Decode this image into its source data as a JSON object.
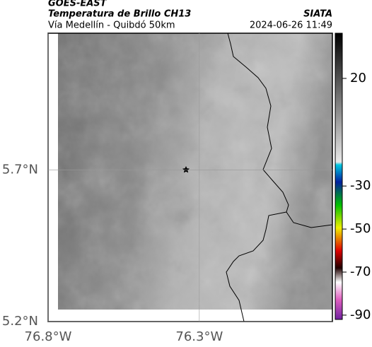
{
  "header": {
    "title": "GOES-EAST",
    "subtitle": "Temperatura de Brillo CH13",
    "region": "Vía Medellín - Quibdó 50km",
    "source": "SIATA",
    "datetime": "2024-06-26 11:49"
  },
  "map": {
    "xlim": [
      -76.8,
      -75.86
    ],
    "ylim": [
      5.2,
      6.15
    ],
    "xticks": [
      {
        "value": -76.8,
        "label": "76.8°W"
      },
      {
        "value": -76.3,
        "label": "76.3°W"
      }
    ],
    "yticks": [
      {
        "value": 5.2,
        "label": "5.2°N"
      },
      {
        "value": 5.7,
        "label": "5.7°N"
      }
    ],
    "grid": true
  },
  "colorbar": {
    "lim": [
      -92,
      41
    ],
    "ticks": [
      20,
      -30,
      -50,
      -70,
      -90
    ]
  }
}
